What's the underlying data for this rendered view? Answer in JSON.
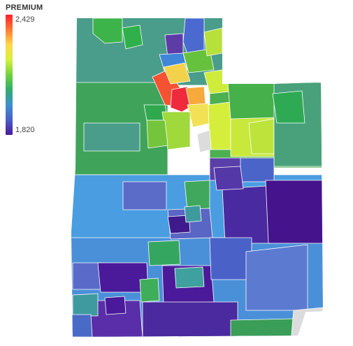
{
  "legend": {
    "title": "PREMIUM",
    "max_label": "2,429",
    "min_label": "1,820",
    "scale": {
      "min": 1820,
      "max": 2429
    },
    "gradient_colors": [
      "#ff1f2e",
      "#ff7a33",
      "#ffd84a",
      "#d6f03c",
      "#72d23c",
      "#2fae6a",
      "#3f8fd0",
      "#4a5fc8",
      "#4a1a9a"
    ]
  },
  "map": {
    "region": "Utah",
    "no_data_color": "#dcdcdc",
    "border_color": "#ffffff"
  }
}
